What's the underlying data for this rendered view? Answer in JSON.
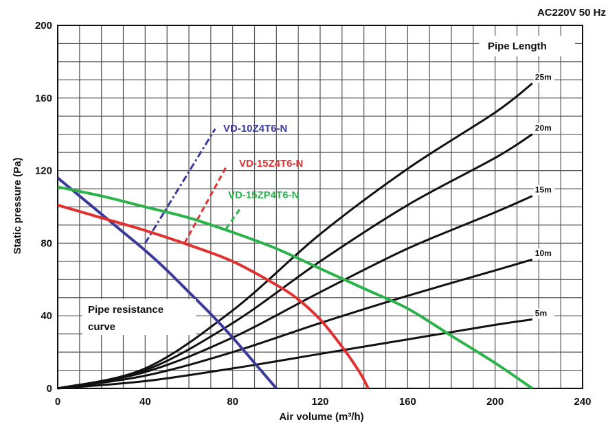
{
  "header": {
    "power_note": "AC220V 50 Hz",
    "pipe_length_title": "Pipe Length"
  },
  "annotation": {
    "line1": "Pipe resistance",
    "line2": "curve"
  },
  "chart_data": {
    "type": "line",
    "xlabel": "Air volume (m³/h)",
    "ylabel": "Static pressure (Pa)",
    "xlim": [
      0,
      240
    ],
    "ylim": [
      0,
      200
    ],
    "x_ticks": [
      0,
      40,
      80,
      120,
      160,
      200,
      240
    ],
    "y_ticks": [
      0,
      40,
      80,
      120,
      160,
      200
    ],
    "grid": true,
    "fan_series": [
      {
        "name": "VD-10Z4T6-N",
        "color": "#3a3a9a",
        "points": [
          [
            0,
            116
          ],
          [
            10,
            106
          ],
          [
            20,
            96
          ],
          [
            30,
            86
          ],
          [
            40,
            76
          ],
          [
            50,
            65
          ],
          [
            60,
            53
          ],
          [
            70,
            41
          ],
          [
            80,
            28
          ],
          [
            90,
            14
          ],
          [
            100,
            0
          ]
        ],
        "label_line": [
          [
            40,
            80
          ],
          [
            72,
            143
          ]
        ]
      },
      {
        "name": "VD-15Z4T6-N",
        "color": "#e03030",
        "points": [
          [
            0,
            101
          ],
          [
            20,
            94
          ],
          [
            40,
            87
          ],
          [
            60,
            79
          ],
          [
            80,
            70
          ],
          [
            100,
            57
          ],
          [
            110,
            49
          ],
          [
            120,
            38
          ],
          [
            130,
            23
          ],
          [
            138,
            9
          ],
          [
            142,
            0
          ]
        ],
        "label_line": [
          [
            58,
            80
          ],
          [
            77,
            122
          ]
        ]
      },
      {
        "name": "VD-15ZP4T6-N",
        "color": "#2bb24a",
        "points": [
          [
            0,
            111
          ],
          [
            20,
            106
          ],
          [
            40,
            100
          ],
          [
            60,
            94
          ],
          [
            80,
            86
          ],
          [
            100,
            77
          ],
          [
            120,
            66
          ],
          [
            140,
            55
          ],
          [
            160,
            44
          ],
          [
            180,
            29
          ],
          [
            200,
            14
          ],
          [
            217,
            0
          ]
        ],
        "label_line": [
          [
            77,
            88
          ],
          [
            84,
            100
          ]
        ]
      }
    ],
    "pipe_resistance_curves": [
      {
        "length": "5m",
        "points": [
          [
            0,
            0
          ],
          [
            40,
            4
          ],
          [
            80,
            11
          ],
          [
            120,
            19
          ],
          [
            160,
            27
          ],
          [
            200,
            35
          ],
          [
            217,
            38
          ]
        ]
      },
      {
        "length": "10m",
        "points": [
          [
            0,
            0
          ],
          [
            40,
            7
          ],
          [
            80,
            20
          ],
          [
            120,
            36
          ],
          [
            160,
            51
          ],
          [
            200,
            65
          ],
          [
            217,
            71
          ]
        ]
      },
      {
        "length": "15m",
        "points": [
          [
            0,
            0
          ],
          [
            40,
            9
          ],
          [
            80,
            28
          ],
          [
            120,
            53
          ],
          [
            160,
            77
          ],
          [
            200,
            97
          ],
          [
            217,
            106
          ]
        ]
      },
      {
        "length": "20m",
        "points": [
          [
            0,
            0
          ],
          [
            40,
            10
          ],
          [
            80,
            36
          ],
          [
            120,
            70
          ],
          [
            160,
            101
          ],
          [
            200,
            127
          ],
          [
            217,
            140
          ]
        ]
      },
      {
        "length": "25m",
        "points": [
          [
            0,
            0
          ],
          [
            40,
            11
          ],
          [
            80,
            43
          ],
          [
            120,
            85
          ],
          [
            160,
            121
          ],
          [
            200,
            152
          ],
          [
            217,
            168
          ]
        ]
      }
    ]
  }
}
